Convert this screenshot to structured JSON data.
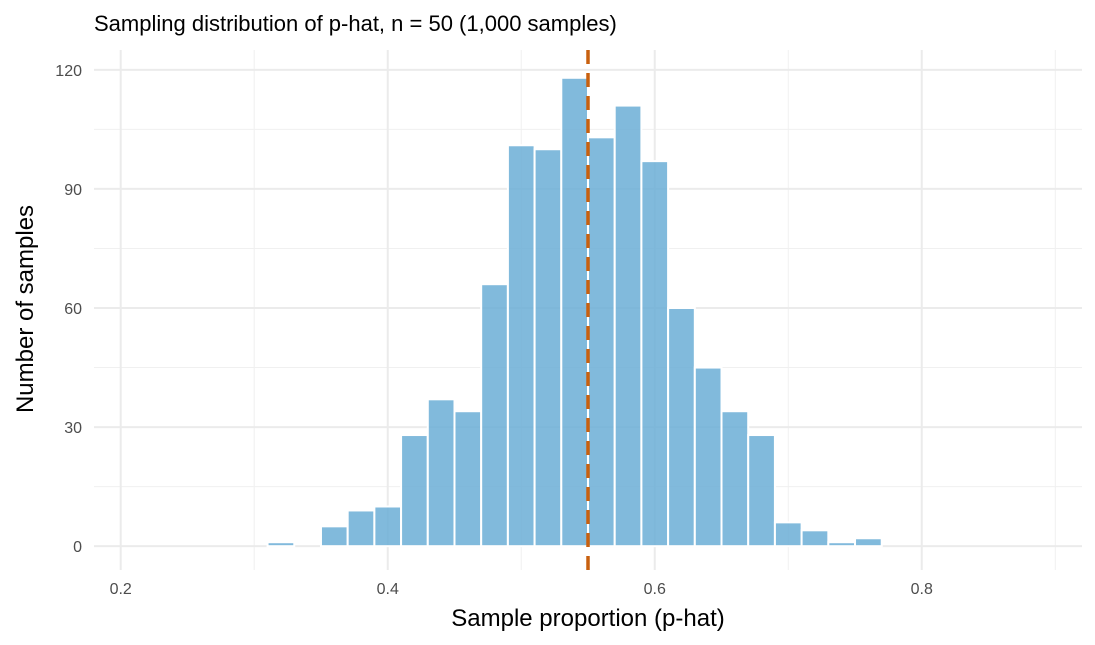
{
  "chart_data": {
    "type": "bar",
    "title": "Sampling distribution of p-hat, n = 50 (1,000 samples)",
    "xlabel": "Sample proportion (p-hat)",
    "ylabel": "Number of samples",
    "xlim": [
      0.18,
      0.92
    ],
    "ylim": [
      -6,
      125
    ],
    "x_ticks": [
      0.2,
      0.4,
      0.6,
      0.8
    ],
    "x_tick_labels": [
      "0.2",
      "0.4",
      "0.6",
      "0.8"
    ],
    "y_ticks": [
      0,
      30,
      60,
      90,
      120
    ],
    "y_tick_labels": [
      "0",
      "30",
      "60",
      "90",
      "120"
    ],
    "bin_width": 0.02,
    "bins": [
      {
        "x": 0.32,
        "count": 1
      },
      {
        "x": 0.36,
        "count": 5
      },
      {
        "x": 0.38,
        "count": 9
      },
      {
        "x": 0.4,
        "count": 10
      },
      {
        "x": 0.42,
        "count": 28
      },
      {
        "x": 0.44,
        "count": 37
      },
      {
        "x": 0.46,
        "count": 34
      },
      {
        "x": 0.48,
        "count": 66
      },
      {
        "x": 0.5,
        "count": 101
      },
      {
        "x": 0.52,
        "count": 100
      },
      {
        "x": 0.54,
        "count": 118
      },
      {
        "x": 0.56,
        "count": 103
      },
      {
        "x": 0.58,
        "count": 111
      },
      {
        "x": 0.6,
        "count": 97
      },
      {
        "x": 0.62,
        "count": 60
      },
      {
        "x": 0.64,
        "count": 45
      },
      {
        "x": 0.66,
        "count": 34
      },
      {
        "x": 0.68,
        "count": 28
      },
      {
        "x": 0.7,
        "count": 6
      },
      {
        "x": 0.72,
        "count": 4
      },
      {
        "x": 0.74,
        "count": 1
      },
      {
        "x": 0.76,
        "count": 2
      }
    ],
    "reference_line": {
      "x": 0.55,
      "style": "dashed",
      "color": "#c8600f"
    },
    "bar_color": "#6baed6",
    "grid": true,
    "legend": "none"
  }
}
